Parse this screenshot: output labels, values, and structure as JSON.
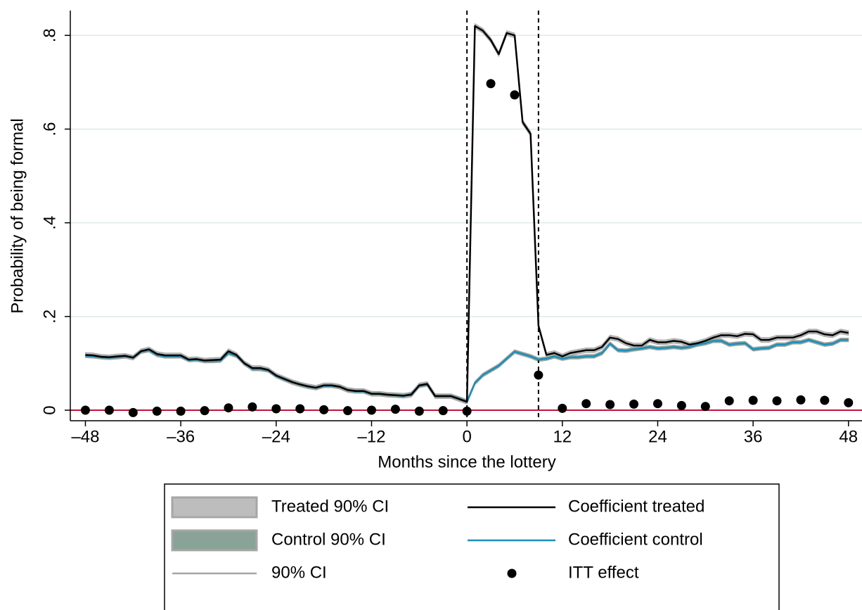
{
  "chart_data": {
    "type": "line",
    "x_label": "Months since the lottery",
    "y_label": "Probability of being formal",
    "xlim": [
      -49.9,
      49.7
    ],
    "ylim": [
      -0.0225,
      0.853
    ],
    "xticks": [
      {
        "value": -48,
        "label": "–48"
      },
      {
        "value": -36,
        "label": "–36"
      },
      {
        "value": -24,
        "label": "–24"
      },
      {
        "value": -12,
        "label": "–12"
      },
      0,
      12,
      24,
      36,
      48
    ],
    "yticks": [
      0,
      {
        "value": 0.2,
        "label": ".2"
      },
      {
        "value": 0.4,
        "label": ".4"
      },
      {
        "value": 0.6,
        "label": ".6"
      },
      {
        "value": 0.8,
        "label": ".8"
      }
    ],
    "grid": true,
    "x": [
      -48,
      -47,
      -46,
      -45,
      -44,
      -43,
      -42,
      -41,
      -40,
      -39,
      -38,
      -37,
      -36,
      -35,
      -34,
      -33,
      -32,
      -31,
      -30,
      -29,
      -28,
      -27,
      -26,
      -25,
      -24,
      -23,
      -22,
      -21,
      -20,
      -19,
      -18,
      -17,
      -16,
      -15,
      -14,
      -13,
      -12,
      -11,
      -10,
      -9,
      -8,
      -7,
      -6,
      -5,
      -4,
      -3,
      -2,
      -1,
      0,
      1,
      2,
      3,
      4,
      5,
      6,
      7,
      8,
      9,
      10,
      11,
      12,
      13,
      14,
      15,
      16,
      17,
      18,
      19,
      20,
      21,
      22,
      23,
      24,
      25,
      26,
      27,
      28,
      29,
      30,
      31,
      32,
      33,
      34,
      35,
      36,
      37,
      38,
      39,
      40,
      41,
      42,
      43,
      44,
      45,
      46,
      47,
      48
    ],
    "bands": [
      {
        "name": "Treated 90% CI",
        "color": "#bdbdbd",
        "lower": [
          0.113,
          0.112,
          0.109,
          0.108,
          0.11,
          0.111,
          0.107,
          0.121,
          0.125,
          0.115,
          0.112,
          0.112,
          0.112,
          0.103,
          0.104,
          0.101,
          0.102,
          0.103,
          0.121,
          0.113,
          0.095,
          0.085,
          0.085,
          0.081,
          0.069,
          0.062,
          0.055,
          0.05,
          0.046,
          0.043,
          0.048,
          0.048,
          0.045,
          0.038,
          0.036,
          0.036,
          0.03,
          0.03,
          0.028,
          0.027,
          0.026,
          0.028,
          0.048,
          0.051,
          0.025,
          0.025,
          0.025,
          0.019,
          0.013,
          0.815,
          0.805,
          0.785,
          0.755,
          0.8,
          0.795,
          0.61,
          0.585,
          0.175,
          0.113,
          0.117,
          0.11,
          0.117,
          0.12,
          0.123,
          0.123,
          0.13,
          0.15,
          0.147,
          0.138,
          0.133,
          0.133,
          0.145,
          0.14,
          0.14,
          0.143,
          0.141,
          0.135,
          0.138,
          0.143,
          0.15,
          0.155,
          0.155,
          0.153,
          0.158,
          0.157,
          0.145,
          0.145,
          0.15,
          0.15,
          0.15,
          0.155,
          0.163,
          0.163,
          0.157,
          0.155,
          0.163,
          0.16
        ],
        "upper": [
          0.123,
          0.122,
          0.119,
          0.118,
          0.12,
          0.121,
          0.117,
          0.131,
          0.135,
          0.125,
          0.122,
          0.122,
          0.122,
          0.113,
          0.114,
          0.111,
          0.112,
          0.113,
          0.131,
          0.123,
          0.105,
          0.095,
          0.095,
          0.091,
          0.079,
          0.072,
          0.065,
          0.06,
          0.056,
          0.053,
          0.058,
          0.058,
          0.055,
          0.048,
          0.046,
          0.046,
          0.04,
          0.04,
          0.038,
          0.037,
          0.036,
          0.038,
          0.058,
          0.061,
          0.035,
          0.035,
          0.035,
          0.029,
          0.023,
          0.825,
          0.815,
          0.795,
          0.765,
          0.81,
          0.805,
          0.62,
          0.595,
          0.185,
          0.123,
          0.127,
          0.12,
          0.127,
          0.13,
          0.133,
          0.133,
          0.14,
          0.16,
          0.157,
          0.148,
          0.143,
          0.143,
          0.155,
          0.15,
          0.15,
          0.153,
          0.151,
          0.145,
          0.148,
          0.153,
          0.16,
          0.165,
          0.165,
          0.163,
          0.168,
          0.167,
          0.155,
          0.155,
          0.16,
          0.16,
          0.16,
          0.165,
          0.173,
          0.173,
          0.167,
          0.165,
          0.173,
          0.17
        ]
      },
      {
        "name": "Control 90% CI",
        "color": "#8aa398",
        "lower": [
          0.112,
          0.111,
          0.109,
          0.108,
          0.109,
          0.111,
          0.109,
          0.121,
          0.124,
          0.114,
          0.111,
          0.111,
          0.111,
          0.103,
          0.104,
          0.101,
          0.101,
          0.102,
          0.118,
          0.112,
          0.096,
          0.084,
          0.084,
          0.081,
          0.069,
          0.062,
          0.056,
          0.051,
          0.046,
          0.044,
          0.048,
          0.048,
          0.046,
          0.039,
          0.036,
          0.036,
          0.031,
          0.031,
          0.029,
          0.028,
          0.026,
          0.031,
          0.048,
          0.051,
          0.026,
          0.026,
          0.026,
          0.021,
          0.014,
          0.054,
          0.071,
          0.081,
          0.091,
          0.106,
          0.121,
          0.116,
          0.111,
          0.104,
          0.106,
          0.111,
          0.106,
          0.109,
          0.109,
          0.111,
          0.111,
          0.118,
          0.138,
          0.124,
          0.123,
          0.126,
          0.128,
          0.131,
          0.128,
          0.129,
          0.131,
          0.129,
          0.131,
          0.136,
          0.139,
          0.144,
          0.144,
          0.136,
          0.138,
          0.139,
          0.126,
          0.128,
          0.129,
          0.136,
          0.136,
          0.141,
          0.141,
          0.146,
          0.141,
          0.136,
          0.138,
          0.146,
          0.146
        ],
        "upper": [
          0.12,
          0.119,
          0.117,
          0.116,
          0.117,
          0.119,
          0.117,
          0.129,
          0.132,
          0.122,
          0.119,
          0.119,
          0.119,
          0.111,
          0.112,
          0.109,
          0.109,
          0.11,
          0.126,
          0.12,
          0.104,
          0.092,
          0.092,
          0.089,
          0.077,
          0.07,
          0.064,
          0.059,
          0.054,
          0.052,
          0.056,
          0.056,
          0.054,
          0.047,
          0.044,
          0.044,
          0.039,
          0.039,
          0.037,
          0.036,
          0.034,
          0.039,
          0.056,
          0.059,
          0.034,
          0.034,
          0.034,
          0.029,
          0.022,
          0.062,
          0.079,
          0.089,
          0.099,
          0.114,
          0.129,
          0.124,
          0.119,
          0.112,
          0.114,
          0.119,
          0.114,
          0.117,
          0.117,
          0.119,
          0.119,
          0.126,
          0.146,
          0.132,
          0.131,
          0.134,
          0.136,
          0.139,
          0.136,
          0.137,
          0.139,
          0.137,
          0.139,
          0.144,
          0.147,
          0.152,
          0.152,
          0.144,
          0.146,
          0.147,
          0.134,
          0.136,
          0.137,
          0.144,
          0.144,
          0.149,
          0.149,
          0.154,
          0.149,
          0.144,
          0.146,
          0.154,
          0.154
        ]
      }
    ],
    "ci_outline": {
      "name": "90% CI",
      "color": "#a6a6a6"
    },
    "series": [
      {
        "name": "Coefficient treated",
        "color": "#000000",
        "values": [
          0.118,
          0.117,
          0.114,
          0.113,
          0.115,
          0.116,
          0.112,
          0.126,
          0.13,
          0.12,
          0.117,
          0.117,
          0.117,
          0.108,
          0.109,
          0.106,
          0.107,
          0.108,
          0.126,
          0.118,
          0.1,
          0.09,
          0.09,
          0.086,
          0.074,
          0.067,
          0.06,
          0.055,
          0.051,
          0.048,
          0.053,
          0.053,
          0.05,
          0.043,
          0.041,
          0.041,
          0.035,
          0.035,
          0.033,
          0.032,
          0.031,
          0.033,
          0.053,
          0.056,
          0.03,
          0.03,
          0.03,
          0.024,
          0.018,
          0.82,
          0.81,
          0.79,
          0.76,
          0.805,
          0.8,
          0.615,
          0.59,
          0.18,
          0.118,
          0.122,
          0.115,
          0.122,
          0.125,
          0.128,
          0.128,
          0.135,
          0.155,
          0.152,
          0.143,
          0.138,
          0.138,
          0.15,
          0.145,
          0.145,
          0.148,
          0.146,
          0.14,
          0.143,
          0.148,
          0.155,
          0.16,
          0.16,
          0.158,
          0.163,
          0.162,
          0.15,
          0.15,
          0.155,
          0.155,
          0.155,
          0.16,
          0.168,
          0.168,
          0.162,
          0.16,
          0.168,
          0.165
        ]
      },
      {
        "name": "Coefficient control",
        "color": "#1a8fbc",
        "values": [
          0.116,
          0.115,
          0.113,
          0.112,
          0.113,
          0.115,
          0.113,
          0.125,
          0.128,
          0.118,
          0.115,
          0.115,
          0.115,
          0.107,
          0.108,
          0.105,
          0.105,
          0.106,
          0.122,
          0.116,
          0.1,
          0.088,
          0.088,
          0.085,
          0.073,
          0.066,
          0.06,
          0.055,
          0.05,
          0.048,
          0.052,
          0.052,
          0.05,
          0.043,
          0.04,
          0.04,
          0.035,
          0.035,
          0.033,
          0.032,
          0.03,
          0.035,
          0.052,
          0.055,
          0.03,
          0.03,
          0.03,
          0.025,
          0.018,
          0.058,
          0.075,
          0.085,
          0.095,
          0.11,
          0.125,
          0.12,
          0.115,
          0.108,
          0.11,
          0.115,
          0.11,
          0.113,
          0.113,
          0.115,
          0.115,
          0.122,
          0.142,
          0.128,
          0.127,
          0.13,
          0.132,
          0.135,
          0.132,
          0.133,
          0.135,
          0.133,
          0.135,
          0.14,
          0.143,
          0.148,
          0.148,
          0.14,
          0.142,
          0.143,
          0.13,
          0.132,
          0.133,
          0.14,
          0.14,
          0.145,
          0.145,
          0.15,
          0.145,
          0.14,
          0.142,
          0.15,
          0.15
        ]
      }
    ],
    "itt": {
      "name": "ITT effect",
      "color": "#000000",
      "x": [
        -48,
        -45,
        -42,
        -39,
        -36,
        -33,
        -30,
        -27,
        -24,
        -21,
        -18,
        -15,
        -12,
        -9,
        -6,
        -3,
        0,
        3,
        6,
        9,
        12,
        15,
        18,
        21,
        24,
        27,
        30,
        33,
        36,
        39,
        42,
        45,
        48
      ],
      "values": [
        0,
        0,
        -0.005,
        -0.002,
        -0.002,
        -0.001,
        0.005,
        0.007,
        0.003,
        0.003,
        0.001,
        -0.001,
        0,
        0.002,
        -0.002,
        -0.001,
        -0.002,
        0.697,
        0.673,
        0.075,
        0.004,
        0.014,
        0.012,
        0.013,
        0.014,
        0.01,
        0.008,
        0.02,
        0.021,
        0.02,
        0.022,
        0.021,
        0.016
      ]
    },
    "vlines": [
      0,
      9
    ],
    "refline": {
      "value": 0,
      "color": "#c0143c"
    }
  }
}
